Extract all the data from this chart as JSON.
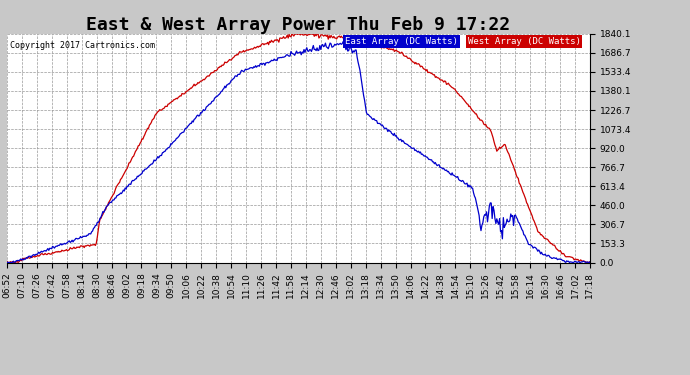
{
  "title": "East & West Array Power Thu Feb 9 17:22",
  "copyright": "Copyright 2017 Cartronics.com",
  "east_label": "East Array (DC Watts)",
  "west_label": "West Array (DC Watts)",
  "east_color": "#0000cc",
  "west_color": "#cc0000",
  "east_legend_bg": "#0000cc",
  "west_legend_bg": "#cc0000",
  "bg_color": "#c8c8c8",
  "plot_bg": "#ffffff",
  "grid_color": "#999999",
  "ylim": [
    0.0,
    1840.1
  ],
  "yticks": [
    0.0,
    153.3,
    306.7,
    460.0,
    613.4,
    766.7,
    920.0,
    1073.4,
    1226.7,
    1380.1,
    1533.4,
    1686.7,
    1840.1
  ],
  "x_labels": [
    "06:52",
    "07:10",
    "07:26",
    "07:42",
    "07:58",
    "08:14",
    "08:30",
    "08:46",
    "09:02",
    "09:18",
    "09:34",
    "09:50",
    "10:06",
    "10:22",
    "10:38",
    "10:54",
    "11:10",
    "11:26",
    "11:42",
    "11:58",
    "12:14",
    "12:30",
    "12:46",
    "13:02",
    "13:18",
    "13:34",
    "13:50",
    "14:06",
    "14:22",
    "14:38",
    "14:54",
    "15:10",
    "15:26",
    "15:42",
    "15:58",
    "16:14",
    "16:30",
    "16:46",
    "17:02",
    "17:18"
  ],
  "title_fontsize": 13,
  "tick_fontsize": 6.5,
  "label_fontsize": 7.5
}
